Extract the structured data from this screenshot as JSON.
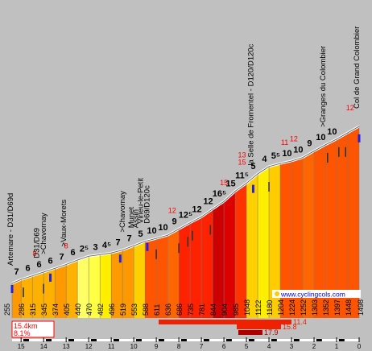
{
  "chart_data": {
    "type": "area",
    "x_unit": "km",
    "xlim": [
      15.4,
      0
    ],
    "ylim": [
      0,
      1600
    ],
    "x_ticks": [
      15,
      14,
      13,
      12,
      11,
      10,
      9,
      8,
      7,
      6,
      5,
      4,
      3,
      2,
      1,
      0
    ],
    "elevation_labels": [
      {
        "km": 15.4,
        "alt": "255"
      },
      {
        "km": 15.0,
        "alt": "286"
      },
      {
        "km": 14.5,
        "alt": "315"
      },
      {
        "km": 14.0,
        "alt": "345"
      },
      {
        "km": 13.5,
        "alt": "374"
      },
      {
        "km": 13.0,
        "alt": "405"
      },
      {
        "km": 12.5,
        "alt": "440"
      },
      {
        "km": 12.0,
        "alt": "470"
      },
      {
        "km": 11.5,
        "alt": "482"
      },
      {
        "km": 11.0,
        "alt": "496"
      },
      {
        "km": 10.5,
        "alt": "519"
      },
      {
        "km": 10.0,
        "alt": "553"
      },
      {
        "km": 9.5,
        "alt": "588"
      },
      {
        "km": 9.0,
        "alt": "611"
      },
      {
        "km": 8.5,
        "alt": "636"
      },
      {
        "km": 8.0,
        "alt": "686"
      },
      {
        "km": 7.5,
        "alt": "735"
      },
      {
        "km": 7.0,
        "alt": "781"
      },
      {
        "km": 6.5,
        "alt": "844"
      },
      {
        "km": 6.0,
        "alt": "904"
      },
      {
        "km": 5.5,
        "alt": "985"
      },
      {
        "km": 5.0,
        "alt": "1048"
      },
      {
        "km": 4.5,
        "alt": "1122"
      },
      {
        "km": 4.0,
        "alt": "1180"
      },
      {
        "km": 3.5,
        "alt": "1204"
      },
      {
        "km": 3.0,
        "alt": "1224"
      },
      {
        "km": 2.5,
        "alt": "1252"
      },
      {
        "km": 2.0,
        "alt": "1303"
      },
      {
        "km": 1.5,
        "alt": "1352"
      },
      {
        "km": 1.0,
        "alt": "1397"
      },
      {
        "km": 0.5,
        "alt": "1448"
      },
      {
        "km": 0.0,
        "alt": "1498"
      }
    ],
    "gradients": [
      {
        "km": 15.2,
        "pct": "7",
        "color": "#ff9900"
      },
      {
        "km": 14.7,
        "pct": "6",
        "color": "#ffb000"
      },
      {
        "km": 14.2,
        "pct": "6",
        "color": "#ffb000"
      },
      {
        "km": 13.7,
        "pct": "6",
        "color": "#ffb000"
      },
      {
        "km": 13.2,
        "pct": "7",
        "color": "#ff9900"
      },
      {
        "km": 12.7,
        "pct": "6",
        "color": "#ffb000"
      },
      {
        "km": 12.2,
        "pct": "2⁵",
        "color": "#ffff66"
      },
      {
        "km": 11.7,
        "pct": "3",
        "color": "#ffff44"
      },
      {
        "km": 11.2,
        "pct": "4⁵",
        "color": "#ffee00"
      },
      {
        "km": 10.7,
        "pct": "7",
        "color": "#ff9900"
      },
      {
        "km": 10.2,
        "pct": "7",
        "color": "#ff9900"
      },
      {
        "km": 9.7,
        "pct": "5",
        "color": "#ffd000"
      },
      {
        "km": 9.2,
        "pct": "10",
        "color": "#ff5500"
      },
      {
        "km": 8.7,
        "pct": "10",
        "color": "#ff5500"
      },
      {
        "km": 8.2,
        "pct": "9",
        "color": "#ff6600"
      },
      {
        "km": 7.7,
        "pct": "12⁵",
        "color": "#ff2200"
      },
      {
        "km": 7.2,
        "pct": "12",
        "color": "#ff2200"
      },
      {
        "km": 6.7,
        "pct": "12",
        "color": "#ff2200"
      },
      {
        "km": 6.2,
        "pct": "16⁵",
        "color": "#cc0000"
      },
      {
        "km": 5.7,
        "pct": "15",
        "color": "#dd0000"
      },
      {
        "km": 5.2,
        "pct": "11⁵",
        "color": "#ff3300"
      },
      {
        "km": 4.7,
        "pct": "5",
        "color": "#ffd000"
      },
      {
        "km": 4.2,
        "pct": "4",
        "color": "#ffee00"
      },
      {
        "km": 3.7,
        "pct": "5⁵",
        "color": "#ffcc00"
      },
      {
        "km": 3.2,
        "pct": "10",
        "color": "#ff5500"
      },
      {
        "km": 2.7,
        "pct": "10",
        "color": "#ff5500"
      },
      {
        "km": 2.2,
        "pct": "9",
        "color": "#ff6600"
      },
      {
        "km": 1.7,
        "pct": "10",
        "color": "#ff5500"
      },
      {
        "km": 1.2,
        "pct": "10",
        "color": "#ff5500"
      }
    ],
    "max_gradients": [
      {
        "km": 14.4,
        "pct": "8"
      },
      {
        "km": 13.0,
        "pct": "8"
      },
      {
        "km": 8.3,
        "pct": "12"
      },
      {
        "km": 6.0,
        "pct": "15"
      },
      {
        "km": 5.2,
        "pct": "13"
      },
      {
        "km": 5.2,
        "pct": "15"
      },
      {
        "km": 2.9,
        "pct": "12"
      },
      {
        "km": 3.3,
        "pct": "11"
      },
      {
        "km": 0.4,
        "pct": "12"
      }
    ],
    "places": [
      {
        "km": 15.4,
        "name": "Artemare - D31/D69d"
      },
      {
        "km": 14.2,
        "name": "D31/D69"
      },
      {
        "km": 13.9,
        "name": ">Chavornay"
      },
      {
        "km": 13.0,
        "name": ">Vaux-Morets"
      },
      {
        "km": 10.4,
        "name": ">Chavornay"
      },
      {
        "km": 10.0,
        "name": "Munet"
      },
      {
        "km": 9.8,
        "name": "Assin"
      },
      {
        "km": 9.6,
        "name": "Virieu-le-Petit"
      },
      {
        "km": 9.3,
        "name": "D69/D120c"
      },
      {
        "km": 4.7,
        "name": "la Selle de Fromentel - D120/D120c"
      },
      {
        "km": 1.5,
        "name": ">Granges du Colombier"
      },
      {
        "km": 0.0,
        "name": "Col de Grand Colombier"
      }
    ],
    "website": "www.cyclingcols.com",
    "summary": {
      "distance": "15.4km",
      "avg": "8.1%"
    },
    "bars": [
      {
        "value": "11.4",
        "color": "#ee2200"
      },
      {
        "value": "15.8",
        "color": "#ee2200"
      },
      {
        "value": "17.9",
        "color": "#aa0000"
      }
    ]
  }
}
